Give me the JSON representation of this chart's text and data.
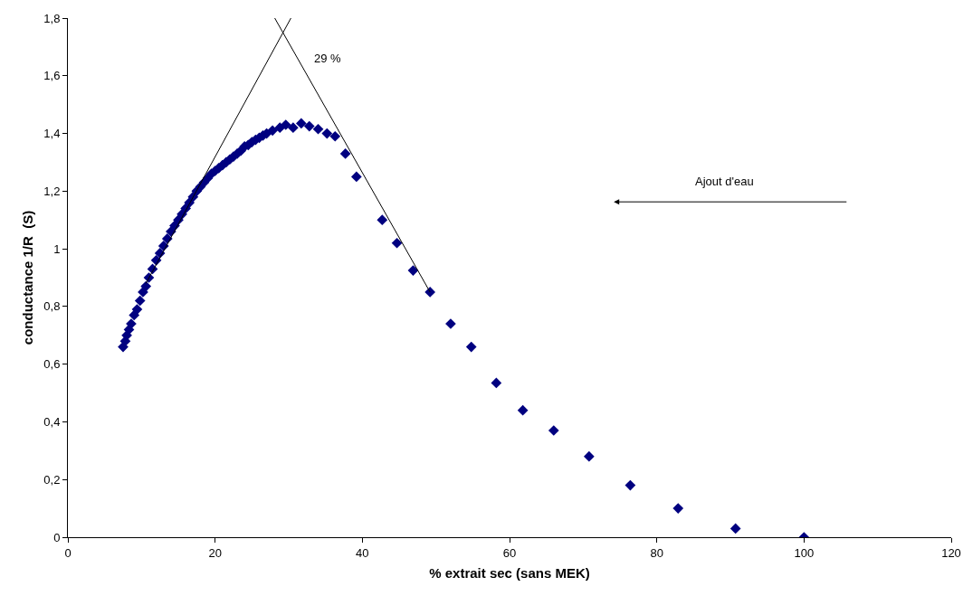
{
  "chart_data": {
    "type": "scatter",
    "xlabel": "% extrait sec (sans MEK)",
    "ylabel": "conductance 1/R  (S)",
    "marker": "diamond",
    "xlim": [
      0,
      120
    ],
    "xticks": [
      0,
      20,
      40,
      60,
      80,
      100,
      120
    ],
    "ylim": [
      0,
      1.8
    ],
    "yticks": [
      0,
      {
        "value": 0.2,
        "label": "0,2"
      },
      {
        "value": 0.4,
        "label": "0,4"
      },
      {
        "value": 0.6,
        "label": "0,6"
      },
      {
        "value": 0.8,
        "label": "0,8"
      },
      1,
      {
        "value": 1.2,
        "label": "1,2"
      },
      {
        "value": 1.4,
        "label": "1,4"
      },
      {
        "value": 1.6,
        "label": "1,6"
      },
      {
        "value": 1.8,
        "label": "1,8"
      }
    ],
    "series": [
      {
        "color": "#000080",
        "x": [
          7.5,
          7.8,
          8,
          8.3,
          8.6,
          9,
          9.4,
          9.8,
          10.2,
          10.6,
          11,
          11.5,
          12,
          12.5,
          13,
          13.5,
          14,
          14.5,
          15,
          15.5,
          16,
          16.5,
          17,
          17.5,
          18,
          18.5,
          19,
          19.5,
          20,
          20.5,
          21,
          21.5,
          22,
          22.5,
          23,
          23.5,
          24,
          24.5,
          25,
          25.5,
          26,
          26.5,
          27,
          27.8,
          28.8,
          29.6,
          30.6,
          31.7,
          32.8,
          34,
          35.2,
          36.3,
          37.7,
          39.2,
          42.7,
          44.7,
          46.9,
          49.2,
          52,
          54.8,
          58.2,
          61.8,
          66,
          70.8,
          76.4,
          82.9,
          90.7,
          100
        ],
        "values": [
          0.66,
          0.68,
          0.7,
          0.72,
          0.74,
          0.77,
          0.79,
          0.82,
          0.85,
          0.87,
          0.9,
          0.93,
          0.96,
          0.985,
          1.01,
          1.035,
          1.06,
          1.08,
          1.1,
          1.12,
          1.14,
          1.16,
          1.18,
          1.2,
          1.215,
          1.23,
          1.245,
          1.26,
          1.27,
          1.28,
          1.29,
          1.3,
          1.31,
          1.32,
          1.33,
          1.34,
          1.355,
          1.36,
          1.37,
          1.378,
          1.385,
          1.393,
          1.4,
          1.41,
          1.42,
          1.43,
          1.42,
          1.435,
          1.425,
          1.415,
          1.4,
          1.39,
          1.33,
          1.25,
          1.1,
          1.02,
          0.925,
          0.85,
          0.74,
          0.66,
          0.535,
          0.44,
          0.37,
          0.28,
          0.18,
          0.1,
          0.03,
          0
        ]
      },
      {
        "type": "line",
        "color": "#000000",
        "marker": "none",
        "x": [
          10.6,
          30.3
        ],
        "values": [
          0.88,
          1.8
        ]
      },
      {
        "type": "line",
        "color": "#000000",
        "marker": "none",
        "x": [
          28.1,
          49.2
        ],
        "values": [
          1.8,
          0.85
        ]
      }
    ],
    "annotations": [
      "29 %",
      "Ajout d'eau"
    ]
  }
}
